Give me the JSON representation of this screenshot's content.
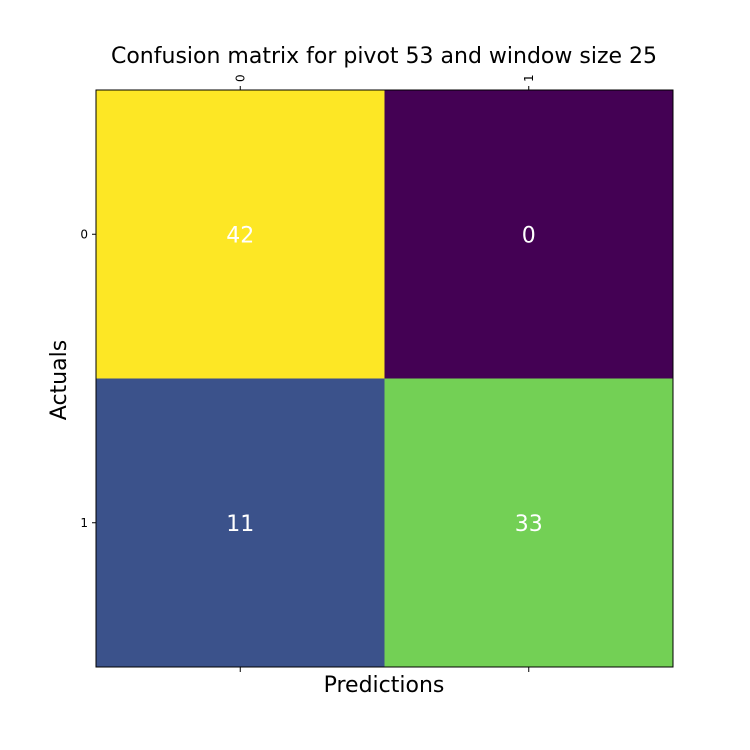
{
  "chart_data": {
    "type": "heatmap",
    "title": "Confusion matrix for pivot 53 and window size 25",
    "xlabel": "Predictions",
    "ylabel": "Actuals",
    "x_categories": [
      "0",
      "1"
    ],
    "y_categories": [
      "0",
      "1"
    ],
    "values": [
      [
        42,
        0
      ],
      [
        11,
        33
      ]
    ],
    "colormap": "viridis",
    "x_ticks_position": "top",
    "grid": false,
    "colors": {
      "42": "#fde725",
      "0": "#440154",
      "11": "#3b528b",
      "33": "#73d055"
    }
  }
}
